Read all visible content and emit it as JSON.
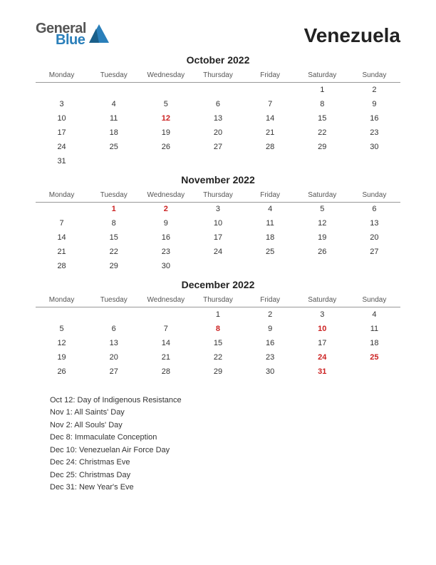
{
  "logo": {
    "word1": "General",
    "word2": "Blue",
    "color_general": "#555555",
    "color_blue": "#2a7fba",
    "shape_color": "#2a7fba"
  },
  "title": "Venezuela",
  "day_headers": [
    "Monday",
    "Tuesday",
    "Wednesday",
    "Thursday",
    "Friday",
    "Saturday",
    "Sunday"
  ],
  "text_color": "#333333",
  "holiday_color": "#cc2222",
  "border_color": "#999999",
  "background_color": "#ffffff",
  "months": [
    {
      "title": "October 2022",
      "weeks": [
        [
          "",
          "",
          "",
          "",
          "",
          "1",
          "2"
        ],
        [
          "3",
          "4",
          "5",
          "6",
          "7",
          "8",
          "9"
        ],
        [
          "10",
          "11",
          "12",
          "13",
          "14",
          "15",
          "16"
        ],
        [
          "17",
          "18",
          "19",
          "20",
          "21",
          "22",
          "23"
        ],
        [
          "24",
          "25",
          "26",
          "27",
          "28",
          "29",
          "30"
        ],
        [
          "31",
          "",
          "",
          "",
          "",
          "",
          ""
        ]
      ],
      "holidays": [
        "12"
      ]
    },
    {
      "title": "November 2022",
      "weeks": [
        [
          "",
          "1",
          "2",
          "3",
          "4",
          "5",
          "6"
        ],
        [
          "7",
          "8",
          "9",
          "10",
          "11",
          "12",
          "13"
        ],
        [
          "14",
          "15",
          "16",
          "17",
          "18",
          "19",
          "20"
        ],
        [
          "21",
          "22",
          "23",
          "24",
          "25",
          "26",
          "27"
        ],
        [
          "28",
          "29",
          "30",
          "",
          "",
          "",
          ""
        ]
      ],
      "holidays": [
        "1",
        "2"
      ]
    },
    {
      "title": "December 2022",
      "weeks": [
        [
          "",
          "",
          "",
          "1",
          "2",
          "3",
          "4"
        ],
        [
          "5",
          "6",
          "7",
          "8",
          "9",
          "10",
          "11"
        ],
        [
          "12",
          "13",
          "14",
          "15",
          "16",
          "17",
          "18"
        ],
        [
          "19",
          "20",
          "21",
          "22",
          "23",
          "24",
          "25"
        ],
        [
          "26",
          "27",
          "28",
          "29",
          "30",
          "31",
          ""
        ]
      ],
      "holidays": [
        "8",
        "10",
        "24",
        "25",
        "31"
      ]
    }
  ],
  "holiday_list": [
    "Oct 12: Day of Indigenous Resistance",
    "Nov 1: All Saints' Day",
    "Nov 2: All Souls' Day",
    "Dec 8: Immaculate Conception",
    "Dec 10: Venezuelan Air Force Day",
    "Dec 24: Christmas Eve",
    "Dec 25: Christmas Day",
    "Dec 31: New Year's Eve"
  ]
}
